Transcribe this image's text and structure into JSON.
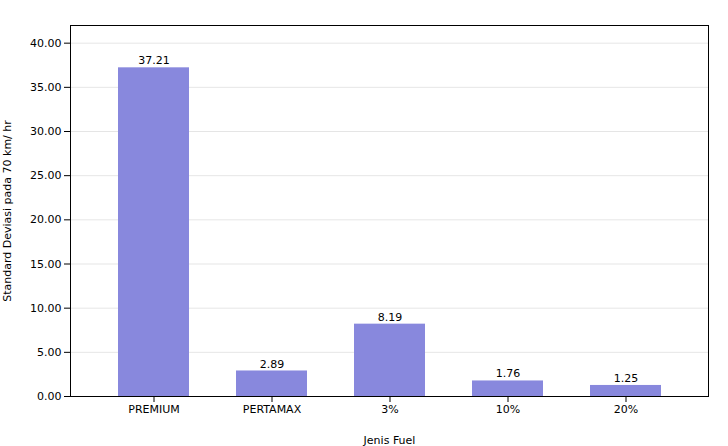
{
  "chart_data": {
    "type": "bar",
    "categories": [
      "PREMIUM",
      "PERTAMAX",
      "3%",
      "10%",
      "20%"
    ],
    "values": [
      37.21,
      2.89,
      8.19,
      1.76,
      1.25
    ],
    "color": "#8888dd",
    "xlabel": "Jenis Fuel",
    "ylabel": "Standard Deviasi pada 70 km/ hr",
    "ylim": [
      0,
      42
    ],
    "yticks": [
      {
        "value": 0,
        "label": "0.00"
      },
      {
        "value": 5,
        "label": "5.00"
      },
      {
        "value": 10,
        "label": "10.00"
      },
      {
        "value": 15,
        "label": "15.00"
      },
      {
        "value": 20,
        "label": "20.00"
      },
      {
        "value": 25,
        "label": "25.00"
      },
      {
        "value": 30,
        "label": "30.00"
      },
      {
        "value": 35,
        "label": "35.00"
      },
      {
        "value": 40,
        "label": "40.00"
      }
    ],
    "grid": true,
    "data_labels": true
  }
}
